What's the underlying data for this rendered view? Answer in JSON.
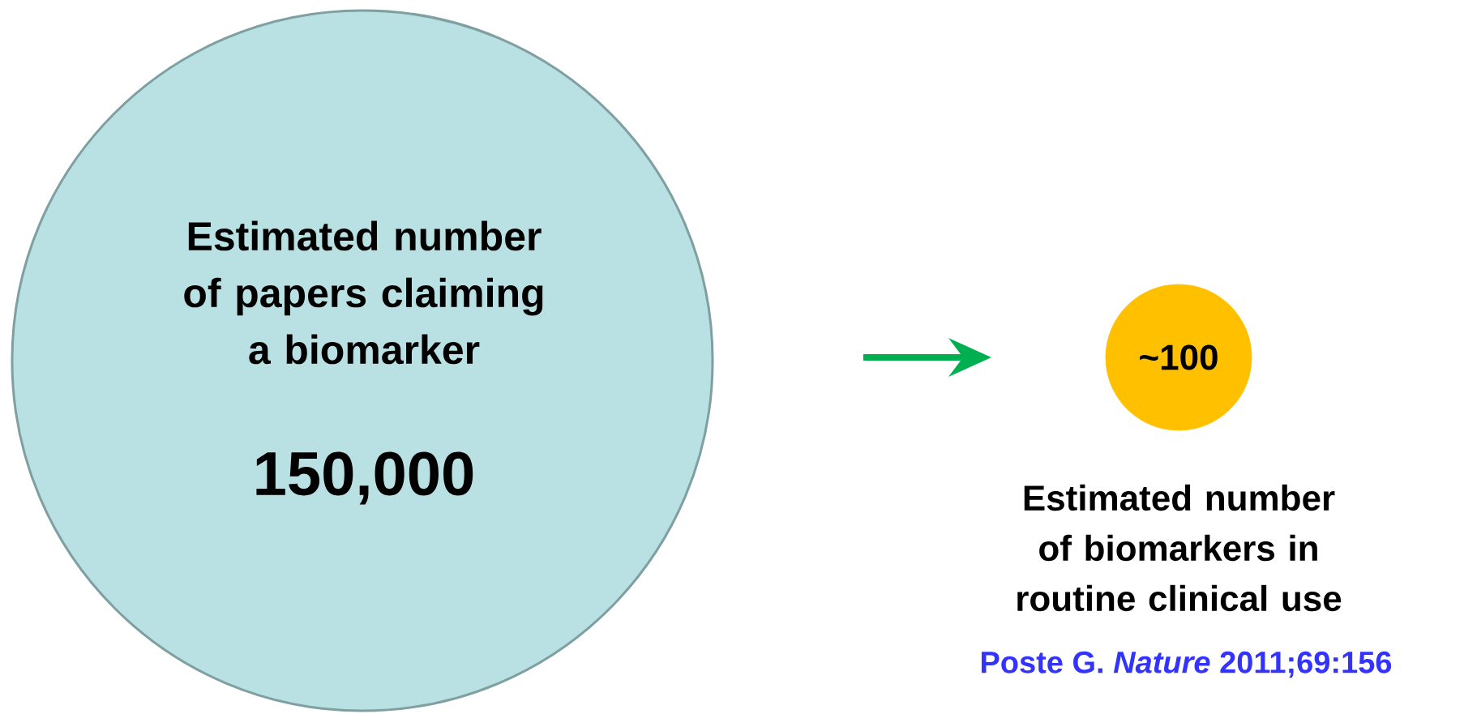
{
  "chart_data": {
    "type": "other",
    "categories": [
      "Estimated number of papers claiming a biomarker",
      "Estimated number of biomarkers in routine clinical use"
    ],
    "values": [
      150000,
      100
    ],
    "value_labels": [
      "150,000",
      "~100"
    ],
    "colors": [
      "#b9e0e3",
      "#ffc000"
    ],
    "annotations": [
      "Poste G. *Nature* 2011;69:156"
    ]
  }
}
